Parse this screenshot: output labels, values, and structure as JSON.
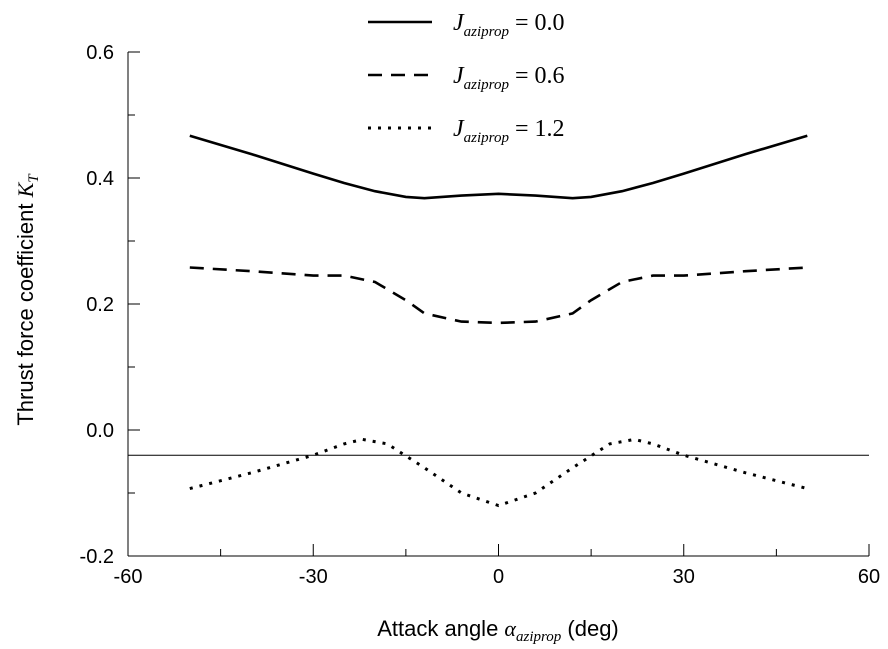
{
  "chart_data": {
    "type": "line",
    "xlabel": {
      "prefix": "Attack angle ",
      "symbol": "α",
      "subscript": "aziprop",
      "suffix": " (deg)"
    },
    "ylabel": {
      "prefix": "Thrust force coefficient ",
      "symbol": "K",
      "subscript": "T"
    },
    "xlim": [
      -60,
      60
    ],
    "ylim": [
      -0.2,
      0.6
    ],
    "xticks": [
      -60,
      -30,
      0,
      30,
      60
    ],
    "xtick_labels": [
      "-60",
      "-30",
      "0",
      "30",
      "60"
    ],
    "yticks": [
      -0.2,
      0.0,
      0.2,
      0.4,
      0.6
    ],
    "ytick_labels": [
      "-0.2",
      "0.0",
      "0.2",
      "0.4",
      "0.6"
    ],
    "reference_line_y": -0.04,
    "grid": false,
    "legend_position": "top-center",
    "series": [
      {
        "name": "J_aziprop = 0.0",
        "legend": {
          "symbol": "J",
          "subscript": "aziprop",
          "value": " = 0.0"
        },
        "style": "solid",
        "color": "#000000",
        "x": [
          -50,
          -40,
          -30,
          -25,
          -20,
          -15,
          -12,
          -6,
          0,
          6,
          12,
          15,
          20,
          25,
          30,
          40,
          50
        ],
        "y": [
          0.467,
          0.438,
          0.407,
          0.392,
          0.379,
          0.37,
          0.368,
          0.372,
          0.375,
          0.372,
          0.368,
          0.37,
          0.379,
          0.392,
          0.407,
          0.438,
          0.467
        ]
      },
      {
        "name": "J_aziprop = 0.6",
        "legend": {
          "symbol": "J",
          "subscript": "aziprop",
          "value": " = 0.6"
        },
        "style": "dashed",
        "color": "#000000",
        "x": [
          -50,
          -40,
          -30,
          -25,
          -20,
          -15,
          -12,
          -6,
          0,
          6,
          12,
          15,
          20,
          25,
          30,
          40,
          50
        ],
        "y": [
          0.258,
          0.252,
          0.245,
          0.245,
          0.235,
          0.206,
          0.185,
          0.172,
          0.17,
          0.172,
          0.185,
          0.206,
          0.235,
          0.245,
          0.245,
          0.252,
          0.258
        ]
      },
      {
        "name": "J_aziprop = 1.2",
        "legend": {
          "symbol": "J",
          "subscript": "aziprop",
          "value": " = 1.2"
        },
        "style": "dotted",
        "color": "#000000",
        "x": [
          -50,
          -40,
          -30,
          -25,
          -22,
          -18,
          -12,
          -6,
          0,
          6,
          12,
          18,
          22,
          25,
          30,
          40,
          50
        ],
        "y": [
          -0.093,
          -0.068,
          -0.04,
          -0.022,
          -0.015,
          -0.022,
          -0.06,
          -0.1,
          -0.12,
          -0.1,
          -0.06,
          -0.022,
          -0.015,
          -0.022,
          -0.04,
          -0.068,
          -0.093
        ]
      }
    ]
  }
}
